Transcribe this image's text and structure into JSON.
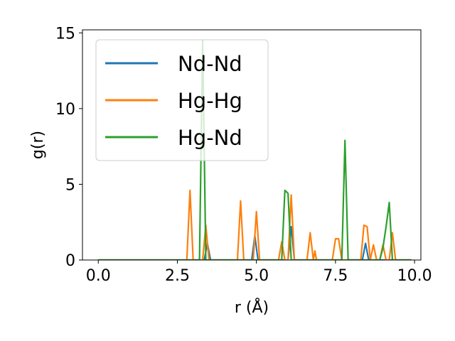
{
  "chart_data": {
    "type": "line",
    "title": "",
    "xlabel": "r (Å)",
    "ylabel": "g(r)",
    "xlim": [
      -0.5,
      10.2
    ],
    "ylim": [
      0,
      15.2
    ],
    "xticks": [
      0.0,
      2.5,
      5.0,
      7.5,
      10.0
    ],
    "xtick_labels": [
      "0.0",
      "2.5",
      "5.0",
      "7.5",
      "10.0"
    ],
    "yticks": [
      0,
      5,
      10,
      15
    ],
    "ytick_labels": [
      "0",
      "5",
      "10",
      "15"
    ],
    "grid": false,
    "legend_position": "top-left",
    "series": [
      {
        "name": "Nd-Nd",
        "color": "#1f77b4",
        "x": [
          0.0,
          3.25,
          3.35,
          3.45,
          3.55,
          4.85,
          4.95,
          5.05,
          6.0,
          6.1,
          6.2,
          8.35,
          8.45,
          8.55,
          9.9
        ],
        "y": [
          0,
          0,
          0,
          1.1,
          0,
          0,
          1.6,
          0,
          0,
          2.2,
          0,
          0,
          1.1,
          0,
          0
        ]
      },
      {
        "name": "Hg-Hg",
        "color": "#ff7f0e",
        "x": [
          0.0,
          2.8,
          2.9,
          3.0,
          3.3,
          3.4,
          3.5,
          4.4,
          4.5,
          4.6,
          4.9,
          5.0,
          5.1,
          5.7,
          5.8,
          5.9,
          6.0,
          6.1,
          6.2,
          6.6,
          6.7,
          6.8,
          6.85,
          6.9,
          7.0,
          7.4,
          7.5,
          7.6,
          7.7,
          8.3,
          8.4,
          8.5,
          8.6,
          8.7,
          8.8,
          8.9,
          9.0,
          9.1,
          9.2,
          9.3,
          9.4,
          9.9
        ],
        "y": [
          0,
          0,
          4.6,
          0,
          0,
          2.3,
          0,
          0,
          3.9,
          0,
          0,
          3.2,
          0,
          0,
          1.2,
          0,
          0,
          4.3,
          0,
          0,
          1.8,
          0,
          0.6,
          0,
          0,
          0,
          1.4,
          1.4,
          0,
          0,
          2.3,
          2.2,
          0,
          1.0,
          0,
          0,
          1.0,
          0,
          0,
          1.8,
          0,
          0
        ]
      },
      {
        "name": "Hg-Nd",
        "color": "#2ca02c",
        "x": [
          0.0,
          3.2,
          3.3,
          3.4,
          5.8,
          5.9,
          6.0,
          6.1,
          6.2,
          7.7,
          7.8,
          7.9,
          8.9,
          9.0,
          9.1,
          9.2,
          9.3,
          9.4,
          9.9
        ],
        "y": [
          0,
          0,
          14.5,
          0,
          0,
          4.6,
          4.4,
          0,
          0,
          0,
          7.9,
          0,
          0,
          0.8,
          2.2,
          3.8,
          0,
          0,
          0
        ]
      }
    ]
  }
}
